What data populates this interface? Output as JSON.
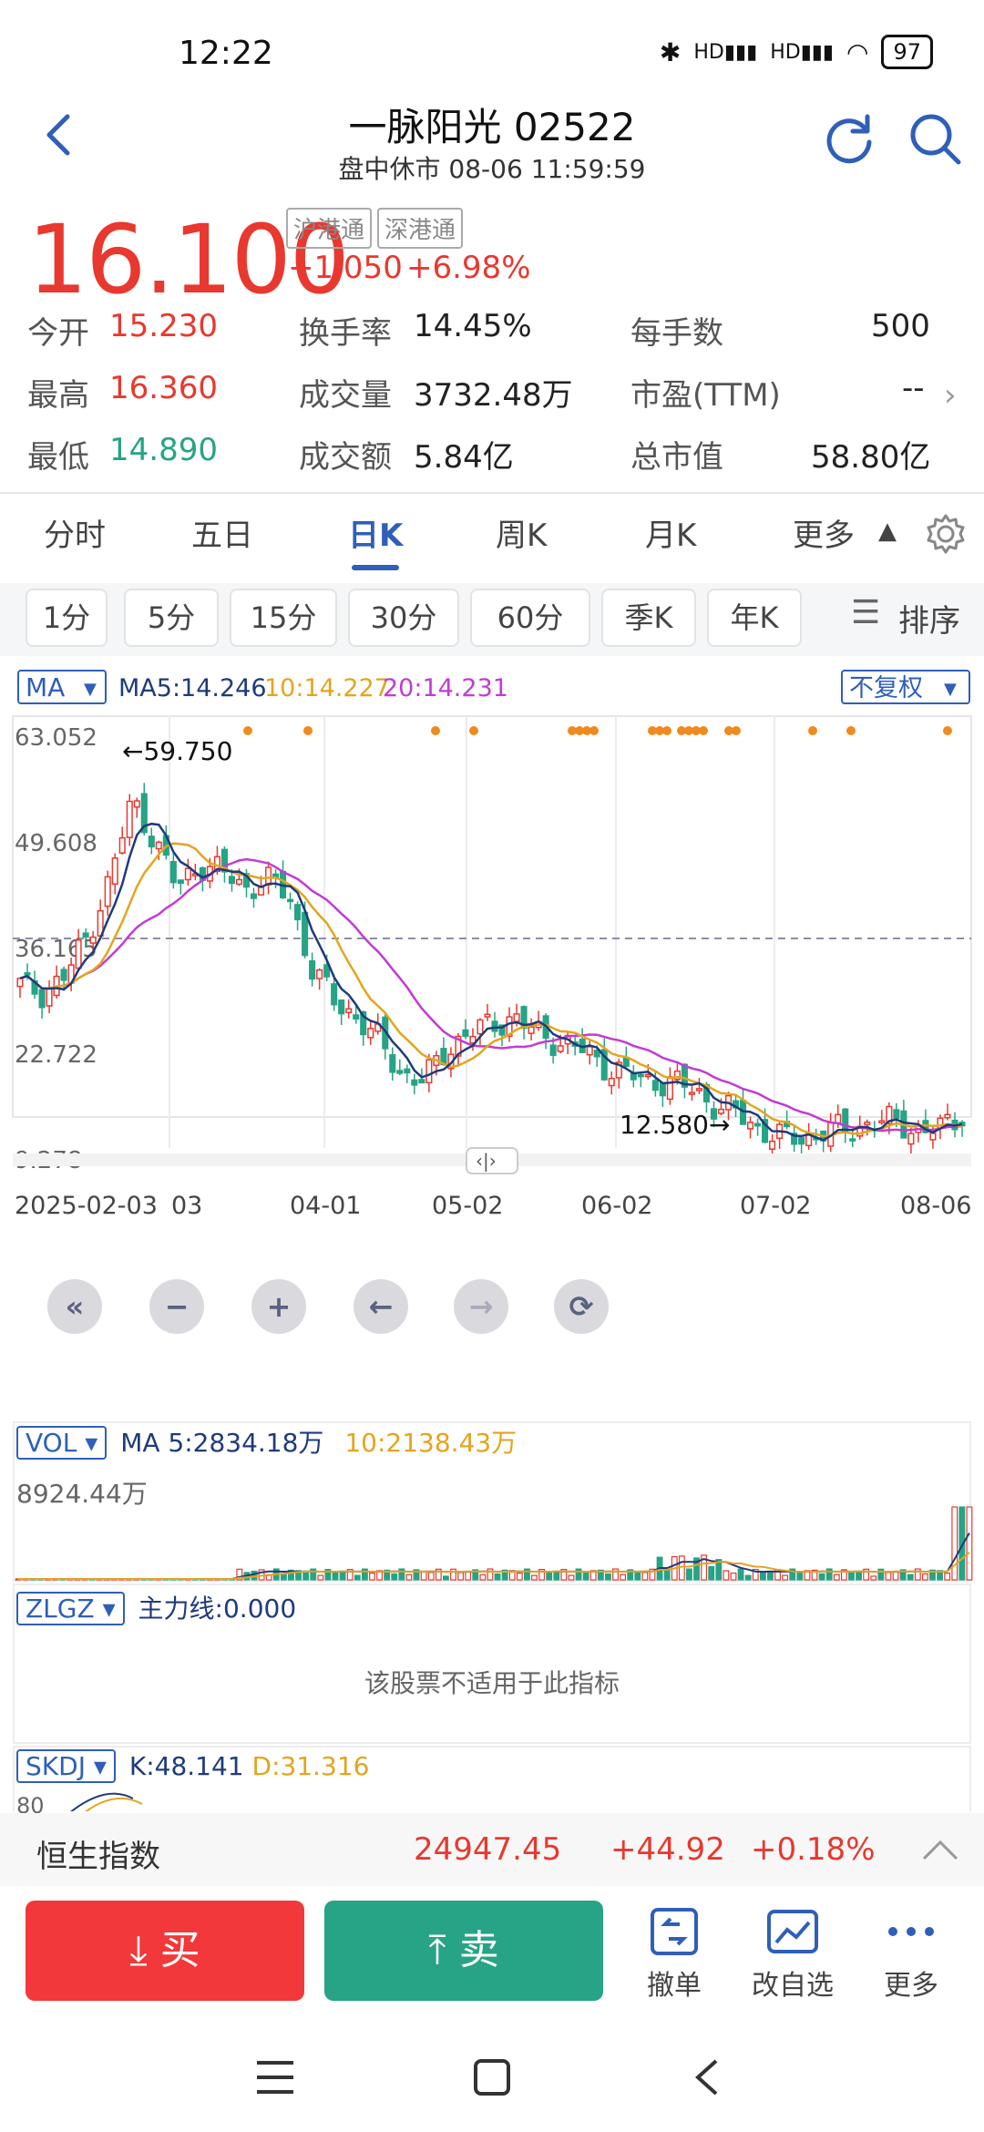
{
  "status": {
    "time": "12:22",
    "hd1": "HD",
    "hd2": "HD",
    "battery": "97"
  },
  "header": {
    "title": "一脉阳光 02522",
    "subtitle": "盘中休市 08-06 11:59:59"
  },
  "quote": {
    "price": "16.100",
    "tags": [
      "沪港通",
      "深港通"
    ],
    "change": "+1.050",
    "change_pct": "+6.98%",
    "stats": [
      [
        {
          "label": "今开",
          "value": "15.230",
          "color": "red"
        },
        {
          "label": "换手率",
          "value": "14.45%"
        },
        {
          "label": "每手数",
          "value": "500"
        }
      ],
      [
        {
          "label": "最高",
          "value": "16.360",
          "color": "red"
        },
        {
          "label": "成交量",
          "value": "3732.48万"
        },
        {
          "label": "市盈(TTM)",
          "value": "--"
        }
      ],
      [
        {
          "label": "最低",
          "value": "14.890",
          "color": "green"
        },
        {
          "label": "成交额",
          "value": "5.84亿"
        },
        {
          "label": "总市值",
          "value": "58.80亿"
        }
      ]
    ]
  },
  "tabs": {
    "items": [
      "分时",
      "五日",
      "日K",
      "周K",
      "月K",
      "更多"
    ],
    "active_index": 2
  },
  "intervals": {
    "items": [
      "1分",
      "5分",
      "15分",
      "30分",
      "60分",
      "季K",
      "年K"
    ],
    "sort_label": "排序"
  },
  "chart": {
    "ma_selector": "MA",
    "ma5": "MA5:14.246",
    "ma10": "10:14.227",
    "ma20": "20:14.231",
    "adjust": "不复权",
    "y_labels": [
      "63.052",
      "49.608",
      "36.165",
      "22.722",
      "9.278"
    ],
    "high_marker": "←59.750",
    "low_marker": "12.580→",
    "x_labels": [
      "2025-02-03",
      "03",
      "04-01",
      "05-02",
      "06-02",
      "07-02",
      "08-06"
    ],
    "colors": {
      "up": "#e8382f",
      "down": "#27a385",
      "ma5": "#1f3b7a",
      "ma10": "#e3a51e",
      "ma20": "#c23bd4"
    }
  },
  "chart_data": {
    "type": "candlestick",
    "x_labels": [
      "2025-02-03",
      "04-01",
      "05-02",
      "06-02",
      "07-02",
      "08-06"
    ],
    "y_ticks": [
      63.052,
      49.608,
      36.165,
      22.722,
      9.278
    ],
    "ylim": [
      9.278,
      63.052
    ],
    "annotations": [
      {
        "text": "←59.750",
        "value": 59.75
      },
      {
        "text": "12.580→",
        "value": 12.58
      }
    ],
    "close_trend": [
      32,
      31,
      33,
      38,
      45,
      55,
      50,
      44,
      47,
      46,
      44,
      45,
      43,
      34,
      30,
      28,
      25,
      21,
      20,
      24,
      26,
      27,
      28,
      26,
      25,
      24,
      22,
      21,
      20,
      20,
      19,
      17,
      16,
      14,
      13,
      13,
      14,
      14,
      15,
      15,
      14,
      14,
      16
    ]
  },
  "volume": {
    "selector": "VOL",
    "ma5": "MA 5:2834.18万",
    "ma10": "10:2138.43万",
    "top_label": "8924.44万"
  },
  "zlgz": {
    "selector": "ZLGZ",
    "value": "主力线:0.000",
    "notice": "该股票不适用于此指标"
  },
  "skdj": {
    "selector": "SKDJ",
    "k": "K:48.141",
    "d": "D:31.316",
    "axis": "80"
  },
  "index_bar": {
    "name": "恒生指数",
    "value": "24947.45",
    "change": "+44.92",
    "pct": "+0.18%"
  },
  "trade": {
    "buy": "买",
    "sell": "卖",
    "cancel": "撤单",
    "edit_watch": "改自选",
    "more": "更多"
  }
}
